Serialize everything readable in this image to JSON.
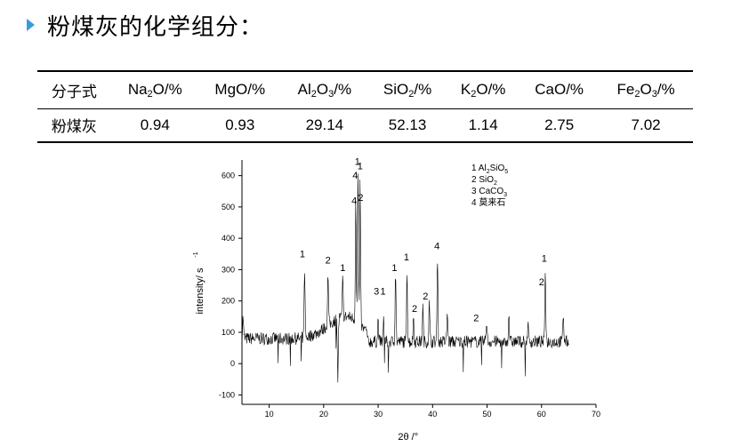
{
  "page": {
    "title": "粉煤灰的化学组分："
  },
  "table": {
    "row_header": "分子式",
    "columns": [
      {
        "base": "Na",
        "sub": "2",
        "rest": "O/%"
      },
      {
        "base": "MgO/%",
        "sub": "",
        "rest": ""
      },
      {
        "base": "Al",
        "sub": "2",
        "rest": "O",
        "sub2": "3",
        "rest2": "/%"
      },
      {
        "base": "SiO",
        "sub": "2",
        "rest": "/%"
      },
      {
        "base": "K",
        "sub": "2",
        "rest": "O/%"
      },
      {
        "base": "CaO/%",
        "sub": "",
        "rest": ""
      },
      {
        "base": "Fe",
        "sub": "2",
        "rest": "O",
        "sub2": "3",
        "rest2": "/%"
      }
    ],
    "row_label": "粉煤灰",
    "values": [
      "0.94",
      "0.93",
      "29.14",
      "52.13",
      "1.14",
      "2.75",
      "7.02"
    ]
  },
  "chart_data": {
    "type": "line",
    "xlabel": "2θ /°",
    "ylabel": "intensity/ s",
    "ylabel_superscript": "-1",
    "xlim": [
      5,
      70
    ],
    "ylim": [
      -130,
      650
    ],
    "xticks": [
      10,
      20,
      30,
      40,
      50,
      60,
      70
    ],
    "yticks": [
      -100,
      0,
      100,
      200,
      300,
      400,
      500,
      600
    ],
    "legend": {
      "position": "top-right",
      "entries": [
        {
          "num": "1",
          "text": "Al",
          "sub1": "2",
          "text2": "SiO",
          "sub2": "5"
        },
        {
          "num": "2",
          "text": "SiO",
          "sub1": "2",
          "text2": "",
          "sub2": ""
        },
        {
          "num": "3",
          "text": "CaCO",
          "sub1": "3",
          "text2": "",
          "sub2": ""
        },
        {
          "num": "4",
          "text": "莫来石",
          "sub1": "",
          "text2": "",
          "sub2": ""
        }
      ]
    },
    "peaks": [
      {
        "x": 5.2,
        "y": 150
      },
      {
        "x": 16.5,
        "y": 310
      },
      {
        "x": 20.8,
        "y": 280
      },
      {
        "x": 22.6,
        "y": -50
      },
      {
        "x": 23.5,
        "y": 270
      },
      {
        "x": 25.9,
        "y": 540
      },
      {
        "x": 26.3,
        "y": 620
      },
      {
        "x": 26.7,
        "y": 580
      },
      {
        "x": 30.0,
        "y": 140
      },
      {
        "x": 31.0,
        "y": 140
      },
      {
        "x": 33.2,
        "y": 300
      },
      {
        "x": 35.3,
        "y": 305
      },
      {
        "x": 36.5,
        "y": 150
      },
      {
        "x": 38.2,
        "y": 180
      },
      {
        "x": 39.4,
        "y": 190
      },
      {
        "x": 40.9,
        "y": 345
      },
      {
        "x": 42.7,
        "y": 160
      },
      {
        "x": 49.9,
        "y": 140
      },
      {
        "x": 54.0,
        "y": 160
      },
      {
        "x": 57.5,
        "y": 130
      },
      {
        "x": 60.7,
        "y": 305
      },
      {
        "x": 64.0,
        "y": 160
      }
    ],
    "annotations": [
      {
        "text": "1",
        "x": 16.1,
        "y": 340
      },
      {
        "text": "2",
        "x": 20.8,
        "y": 320
      },
      {
        "text": "1",
        "x": 23.5,
        "y": 295
      },
      {
        "text": "4",
        "x": 25.8,
        "y": 590
      },
      {
        "text": "1",
        "x": 26.2,
        "y": 635
      },
      {
        "text": "1",
        "x": 26.7,
        "y": 620
      },
      {
        "text": "4",
        "x": 25.6,
        "y": 510
      },
      {
        "text": "2",
        "x": 26.8,
        "y": 520
      },
      {
        "text": "3",
        "x": 29.7,
        "y": 220
      },
      {
        "text": "1",
        "x": 30.9,
        "y": 220
      },
      {
        "text": "1",
        "x": 33.0,
        "y": 295
      },
      {
        "text": "1",
        "x": 35.2,
        "y": 330
      },
      {
        "text": "2",
        "x": 38.7,
        "y": 205
      },
      {
        "text": "2",
        "x": 36.7,
        "y": 165
      },
      {
        "text": "4",
        "x": 40.8,
        "y": 365
      },
      {
        "text": "2",
        "x": 48.0,
        "y": 135
      },
      {
        "text": "1",
        "x": 60.5,
        "y": 325
      },
      {
        "text": "2",
        "x": 60.0,
        "y": 250
      }
    ]
  }
}
